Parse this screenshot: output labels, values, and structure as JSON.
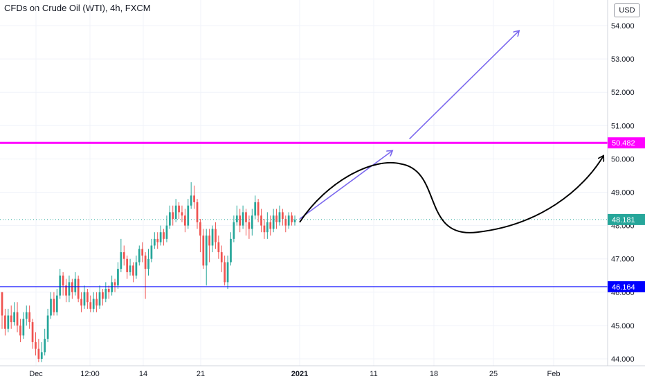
{
  "header": {
    "symbol_title": "CFDs on Crude Oil (WTI), 4h, FXCM",
    "currency_button": "USD"
  },
  "colors": {
    "up": "#26a69a",
    "down": "#ef5350",
    "resistance": "#ff00ff",
    "support": "#0000ff",
    "last_price": "#26a69a",
    "projection_arrow": "#7b68ee",
    "projection_curve": "#000000"
  },
  "chart_data": {
    "type": "candlestick",
    "y_axis": {
      "range": [
        43.8,
        54.3
      ],
      "ticks": [
        "44.000",
        "45.000",
        "46.000",
        "47.000",
        "48.000",
        "49.000",
        "50.000",
        "51.000",
        "52.000",
        "53.000",
        "54.000"
      ]
    },
    "x_axis": {
      "labels": [
        "Dec",
        "12:00",
        "14",
        "21",
        "2021",
        "11",
        "18",
        "25",
        "Feb"
      ]
    },
    "levels": [
      {
        "value": 50.482,
        "label": "50.482",
        "color": "#ff00ff",
        "style": "solid-thick"
      },
      {
        "value": 46.164,
        "label": "46.164",
        "color": "#0000ff",
        "style": "solid"
      },
      {
        "value": 48.181,
        "label": "48.181",
        "color": "#26a69a",
        "style": "dotted"
      }
    ],
    "candles": [
      [
        46.0,
        45.3,
        46.0,
        44.9
      ],
      [
        45.3,
        44.9,
        45.5,
        44.7
      ],
      [
        44.9,
        45.3,
        45.5,
        44.8
      ],
      [
        45.3,
        45.1,
        45.6,
        44.9
      ],
      [
        45.1,
        45.4,
        45.7,
        45.0
      ],
      [
        45.4,
        45.0,
        45.7,
        44.8
      ],
      [
        45.0,
        44.7,
        45.2,
        44.5
      ],
      [
        44.7,
        45.2,
        45.4,
        44.6
      ],
      [
        45.2,
        45.4,
        45.6,
        45.0
      ],
      [
        45.4,
        45.1,
        45.6,
        44.9
      ],
      [
        45.1,
        44.5,
        45.2,
        44.3
      ],
      [
        44.5,
        44.3,
        44.8,
        44.1
      ],
      [
        44.3,
        44.0,
        44.6,
        43.9
      ],
      [
        44.0,
        44.2,
        44.5,
        43.9
      ],
      [
        44.2,
        44.6,
        44.9,
        44.1
      ],
      [
        44.6,
        45.3,
        45.5,
        44.5
      ],
      [
        45.3,
        45.8,
        46.0,
        45.2
      ],
      [
        45.8,
        45.4,
        46.0,
        45.3
      ],
      [
        45.4,
        45.9,
        46.1,
        45.3
      ],
      [
        45.9,
        46.5,
        46.7,
        45.8
      ],
      [
        46.5,
        46.2,
        46.6,
        45.9
      ],
      [
        46.2,
        45.9,
        46.4,
        45.7
      ],
      [
        45.9,
        46.3,
        46.5,
        45.7
      ],
      [
        46.3,
        46.0,
        46.4,
        45.8
      ],
      [
        46.0,
        46.4,
        46.6,
        45.9
      ],
      [
        46.4,
        45.8,
        46.5,
        45.7
      ],
      [
        45.8,
        45.6,
        46.0,
        45.4
      ],
      [
        45.6,
        46.0,
        46.2,
        45.5
      ],
      [
        46.0,
        45.7,
        46.1,
        45.5
      ],
      [
        45.7,
        45.5,
        45.9,
        45.4
      ],
      [
        45.5,
        45.8,
        46.0,
        45.4
      ],
      [
        45.8,
        45.6,
        46.0,
        45.4
      ],
      [
        45.6,
        46.0,
        46.2,
        45.5
      ],
      [
        46.0,
        45.8,
        46.1,
        45.6
      ],
      [
        45.8,
        46.1,
        46.3,
        45.7
      ],
      [
        46.1,
        46.0,
        46.2,
        45.8
      ],
      [
        46.0,
        46.3,
        46.5,
        45.9
      ],
      [
        46.3,
        46.2,
        46.4,
        46.0
      ],
      [
        46.2,
        46.7,
        46.9,
        46.1
      ],
      [
        46.7,
        47.2,
        47.6,
        46.6
      ],
      [
        47.2,
        47.0,
        47.4,
        46.8
      ],
      [
        47.0,
        46.6,
        47.1,
        46.4
      ],
      [
        46.6,
        46.8,
        47.0,
        46.5
      ],
      [
        46.8,
        46.5,
        46.9,
        46.3
      ],
      [
        46.5,
        46.9,
        47.1,
        46.4
      ],
      [
        46.9,
        47.3,
        47.4,
        46.8
      ],
      [
        47.3,
        47.1,
        47.5,
        46.9
      ],
      [
        47.1,
        46.7,
        47.2,
        45.8
      ],
      [
        46.7,
        47.0,
        47.3,
        46.5
      ],
      [
        47.0,
        47.4,
        47.6,
        46.9
      ],
      [
        47.4,
        47.6,
        47.8,
        47.3
      ],
      [
        47.6,
        47.5,
        47.8,
        47.3
      ],
      [
        47.5,
        47.8,
        48.0,
        47.4
      ],
      [
        47.8,
        47.6,
        47.9,
        47.4
      ],
      [
        47.6,
        48.0,
        48.3,
        47.5
      ],
      [
        48.0,
        48.4,
        48.6,
        47.9
      ],
      [
        48.4,
        48.2,
        48.6,
        48.0
      ],
      [
        48.2,
        48.6,
        48.8,
        48.1
      ],
      [
        48.6,
        48.4,
        48.7,
        48.2
      ],
      [
        48.4,
        48.3,
        48.6,
        48.1
      ],
      [
        48.3,
        48.0,
        48.5,
        47.8
      ],
      [
        48.0,
        48.6,
        48.8,
        47.9
      ],
      [
        48.6,
        48.9,
        49.3,
        48.5
      ],
      [
        48.9,
        48.7,
        49.2,
        48.5
      ],
      [
        48.7,
        48.1,
        48.8,
        47.9
      ],
      [
        48.1,
        47.7,
        48.2,
        47.2
      ],
      [
        47.7,
        46.8,
        47.9,
        46.7
      ],
      [
        46.8,
        47.7,
        47.9,
        46.2
      ],
      [
        47.7,
        47.4,
        47.9,
        46.9
      ],
      [
        47.4,
        47.9,
        48.0,
        47.2
      ],
      [
        47.9,
        47.5,
        48.1,
        47.3
      ],
      [
        47.5,
        47.2,
        47.7,
        47.0
      ],
      [
        47.2,
        46.9,
        47.4,
        46.6
      ],
      [
        46.9,
        46.3,
        47.1,
        46.2
      ],
      [
        46.3,
        46.9,
        47.1,
        46.1
      ],
      [
        46.9,
        47.6,
        47.8,
        46.8
      ],
      [
        47.6,
        48.1,
        48.3,
        47.5
      ],
      [
        48.1,
        48.3,
        48.6,
        48.0
      ],
      [
        48.3,
        48.0,
        48.5,
        47.8
      ],
      [
        48.0,
        48.4,
        48.6,
        47.9
      ],
      [
        48.4,
        48.1,
        48.5,
        47.7
      ],
      [
        48.1,
        47.9,
        48.3,
        47.6
      ],
      [
        47.9,
        48.3,
        48.5,
        47.7
      ],
      [
        48.3,
        48.7,
        48.9,
        48.2
      ],
      [
        48.7,
        48.3,
        48.8,
        48.1
      ],
      [
        48.3,
        48.0,
        48.5,
        47.8
      ],
      [
        48.0,
        47.8,
        48.2,
        47.6
      ],
      [
        47.8,
        48.1,
        48.4,
        47.6
      ],
      [
        48.1,
        47.9,
        48.3,
        47.7
      ],
      [
        47.9,
        48.3,
        48.5,
        47.8
      ],
      [
        48.3,
        48.1,
        48.5,
        47.9
      ],
      [
        48.1,
        48.4,
        48.6,
        48.0
      ],
      [
        48.4,
        48.2,
        48.5,
        48.0
      ],
      [
        48.2,
        48.0,
        48.3,
        47.8
      ],
      [
        48.0,
        48.3,
        48.4,
        47.9
      ],
      [
        48.3,
        48.1,
        48.4,
        48.0
      ],
      [
        48.1,
        48.181,
        48.3,
        48.0
      ]
    ],
    "annotations": [
      {
        "type": "arrow",
        "color": "#7b68ee",
        "from": {
          "x": "2021-01-01",
          "y": 48.2
        },
        "to": {
          "x": "2021-01-12",
          "y": 50.25
        }
      },
      {
        "type": "arrow",
        "color": "#7b68ee",
        "from": {
          "x": "2021-01-14",
          "y": 50.6
        },
        "to": {
          "x": "2021-01-27",
          "y": 53.85
        }
      },
      {
        "type": "curve-arrow",
        "color": "#000000",
        "path": [
          {
            "x": "2021-01-01",
            "y": 48.1
          },
          {
            "x": "2021-01-13",
            "y": 49.85
          },
          {
            "x": "2021-01-22",
            "y": 47.8
          },
          {
            "x": "2021-02-06",
            "y": 50.1
          }
        ]
      }
    ]
  }
}
